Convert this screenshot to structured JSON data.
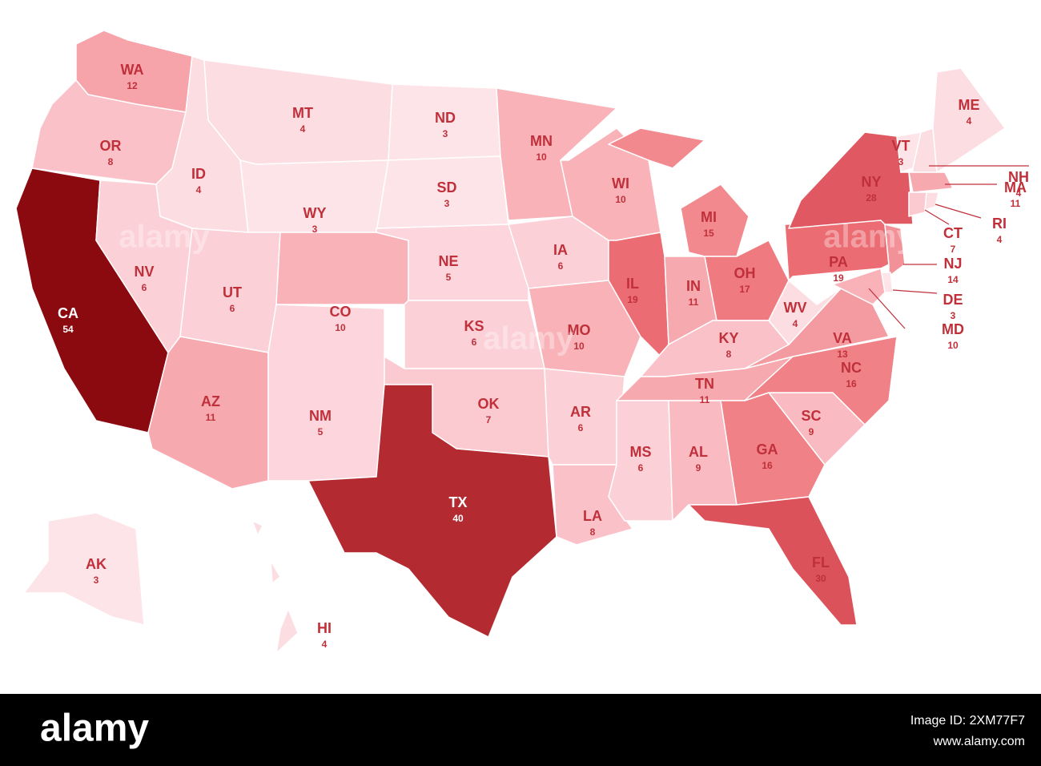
{
  "map": {
    "states": [
      {
        "abbr": "WA",
        "value": 12,
        "color": "#f6a3aa"
      },
      {
        "abbr": "OR",
        "value": 8,
        "color": "#fac2c8"
      },
      {
        "abbr": "CA",
        "value": 54,
        "color": "#8b0a10"
      },
      {
        "abbr": "ID",
        "value": 4,
        "color": "#fcdde2"
      },
      {
        "abbr": "NV",
        "value": 6,
        "color": "#fbd0d6"
      },
      {
        "abbr": "MT",
        "value": 4,
        "color": "#fcdde2"
      },
      {
        "abbr": "WY",
        "value": 3,
        "color": "#fde4e8"
      },
      {
        "abbr": "UT",
        "value": 6,
        "color": "#fbd0d6"
      },
      {
        "abbr": "CO",
        "value": 10,
        "color": "#f8b2b8"
      },
      {
        "abbr": "AZ",
        "value": 11,
        "color": "#f7a9b0"
      },
      {
        "abbr": "NM",
        "value": 5,
        "color": "#fcd6dc"
      },
      {
        "abbr": "ND",
        "value": 3,
        "color": "#fde4e8"
      },
      {
        "abbr": "SD",
        "value": 3,
        "color": "#fde4e8"
      },
      {
        "abbr": "NE",
        "value": 5,
        "color": "#fcd6dc"
      },
      {
        "abbr": "KS",
        "value": 6,
        "color": "#fbd0d6"
      },
      {
        "abbr": "OK",
        "value": 7,
        "color": "#fbc9d0"
      },
      {
        "abbr": "TX",
        "value": 40,
        "color": "#b32a31"
      },
      {
        "abbr": "MN",
        "value": 10,
        "color": "#f8b2b8"
      },
      {
        "abbr": "IA",
        "value": 6,
        "color": "#fbd0d6"
      },
      {
        "abbr": "MO",
        "value": 10,
        "color": "#f8b2b8"
      },
      {
        "abbr": "AR",
        "value": 6,
        "color": "#fbd0d6"
      },
      {
        "abbr": "LA",
        "value": 8,
        "color": "#fac2c8"
      },
      {
        "abbr": "WI",
        "value": 10,
        "color": "#f8b2b8"
      },
      {
        "abbr": "IL",
        "value": 19,
        "color": "#ec6c73"
      },
      {
        "abbr": "MI",
        "value": 15,
        "color": "#f2898f"
      },
      {
        "abbr": "IN",
        "value": 11,
        "color": "#f7a9b0"
      },
      {
        "abbr": "OH",
        "value": 17,
        "color": "#ef7a80"
      },
      {
        "abbr": "KY",
        "value": 8,
        "color": "#fac2c8"
      },
      {
        "abbr": "TN",
        "value": 11,
        "color": "#f7a9b0"
      },
      {
        "abbr": "MS",
        "value": 6,
        "color": "#fbd0d6"
      },
      {
        "abbr": "AL",
        "value": 9,
        "color": "#f9bbc1"
      },
      {
        "abbr": "GA",
        "value": 16,
        "color": "#f08187"
      },
      {
        "abbr": "FL",
        "value": 30,
        "color": "#db525b"
      },
      {
        "abbr": "SC",
        "value": 9,
        "color": "#f9bbc1"
      },
      {
        "abbr": "NC",
        "value": 16,
        "color": "#f08187"
      },
      {
        "abbr": "VA",
        "value": 13,
        "color": "#f49aa1"
      },
      {
        "abbr": "WV",
        "value": 4,
        "color": "#fcdde2"
      },
      {
        "abbr": "PA",
        "value": 19,
        "color": "#ec6c73"
      },
      {
        "abbr": "NY",
        "value": 28,
        "color": "#df5862"
      },
      {
        "abbr": "VT",
        "value": 3,
        "color": "#fde4e8"
      },
      {
        "abbr": "NH",
        "value": 4,
        "color": "#fcdde2"
      },
      {
        "abbr": "ME",
        "value": 4,
        "color": "#fcdde2"
      },
      {
        "abbr": "MA",
        "value": 11,
        "color": "#f7a9b0"
      },
      {
        "abbr": "CT",
        "value": 7,
        "color": "#fbc9d0"
      },
      {
        "abbr": "RI",
        "value": 4,
        "color": "#fcdde2"
      },
      {
        "abbr": "NJ",
        "value": 14,
        "color": "#f39198"
      },
      {
        "abbr": "DE",
        "value": 3,
        "color": "#fde4e8"
      },
      {
        "abbr": "MD",
        "value": 10,
        "color": "#f8b2b8"
      },
      {
        "abbr": "AK",
        "value": 3,
        "color": "#fde4e8"
      },
      {
        "abbr": "HI",
        "value": 4,
        "color": "#fcdde2"
      }
    ]
  },
  "footer": {
    "logo": "alamy",
    "image_id": "Image ID: 2XM77F7",
    "url": "www.alamy.com"
  }
}
